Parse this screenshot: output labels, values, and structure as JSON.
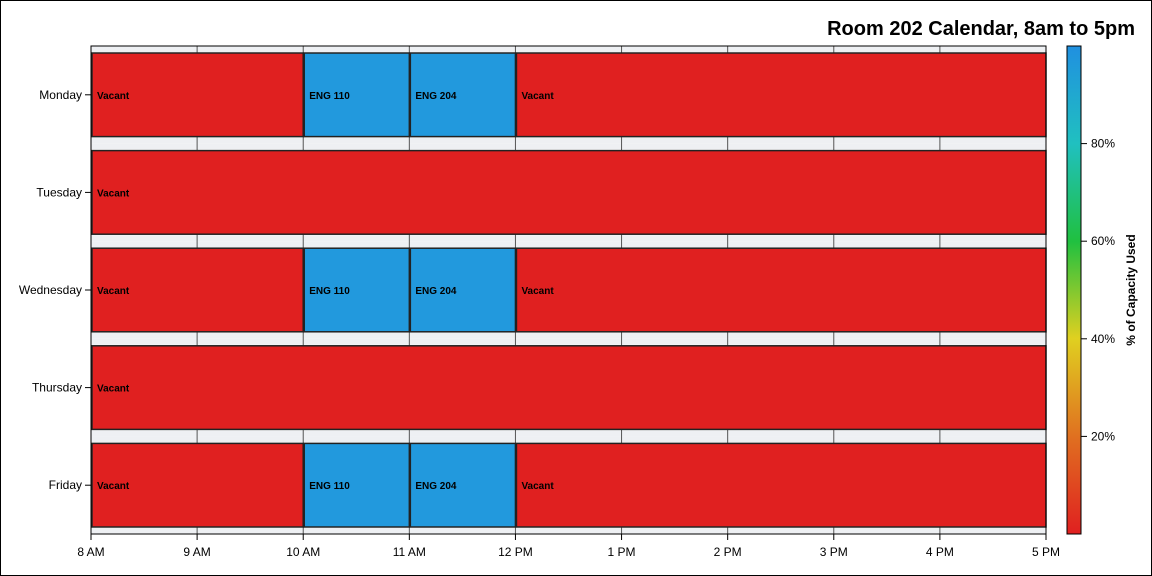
{
  "chart_data": {
    "type": "bar",
    "orientation": "horizontal-timeline",
    "title": "Room 202 Calendar, 8am to 5pm",
    "xlabel": "",
    "ylabel": "",
    "x_range_hours": [
      8,
      17
    ],
    "x_tick_labels": [
      "8 AM",
      "9 AM",
      "10 AM",
      "11 AM",
      "12 PM",
      "1 PM",
      "2 PM",
      "3 PM",
      "4 PM",
      "5 PM"
    ],
    "categories": [
      "Monday",
      "Tuesday",
      "Wednesday",
      "Thursday",
      "Friday"
    ],
    "grid": true,
    "colorbar": {
      "label": "% of Capacity Used",
      "tick_labels": [
        "20%",
        "40%",
        "60%",
        "80%"
      ],
      "tick_values": [
        20,
        40,
        60,
        80
      ],
      "range": [
        0,
        100
      ],
      "colors": [
        "#e02020",
        "#e07020",
        "#e0d020",
        "#20c040",
        "#20c0c0",
        "#2090e0"
      ]
    },
    "series": [
      {
        "day": "Monday",
        "segments": [
          {
            "label": "Vacant",
            "start": 8,
            "end": 10,
            "capacity": 0
          },
          {
            "label": "ENG 110",
            "start": 10,
            "end": 11,
            "capacity": 100
          },
          {
            "label": "ENG 204",
            "start": 11,
            "end": 12,
            "capacity": 100
          },
          {
            "label": "Vacant",
            "start": 12,
            "end": 17,
            "capacity": 0
          }
        ]
      },
      {
        "day": "Tuesday",
        "segments": [
          {
            "label": "Vacant",
            "start": 8,
            "end": 17,
            "capacity": 0
          }
        ]
      },
      {
        "day": "Wednesday",
        "segments": [
          {
            "label": "Vacant",
            "start": 8,
            "end": 10,
            "capacity": 0
          },
          {
            "label": "ENG 110",
            "start": 10,
            "end": 11,
            "capacity": 100
          },
          {
            "label": "ENG 204",
            "start": 11,
            "end": 12,
            "capacity": 100
          },
          {
            "label": "Vacant",
            "start": 12,
            "end": 17,
            "capacity": 0
          }
        ]
      },
      {
        "day": "Thursday",
        "segments": [
          {
            "label": "Vacant",
            "start": 8,
            "end": 17,
            "capacity": 0
          }
        ]
      },
      {
        "day": "Friday",
        "segments": [
          {
            "label": "Vacant",
            "start": 8,
            "end": 10,
            "capacity": 0
          },
          {
            "label": "ENG 110",
            "start": 10,
            "end": 11,
            "capacity": 100
          },
          {
            "label": "ENG 204",
            "start": 11,
            "end": 12,
            "capacity": 100
          },
          {
            "label": "Vacant",
            "start": 12,
            "end": 17,
            "capacity": 0
          }
        ]
      }
    ],
    "colors": {
      "vacant": "#e02020",
      "occupied": "#2299dd",
      "band": "#eef0f3"
    }
  }
}
